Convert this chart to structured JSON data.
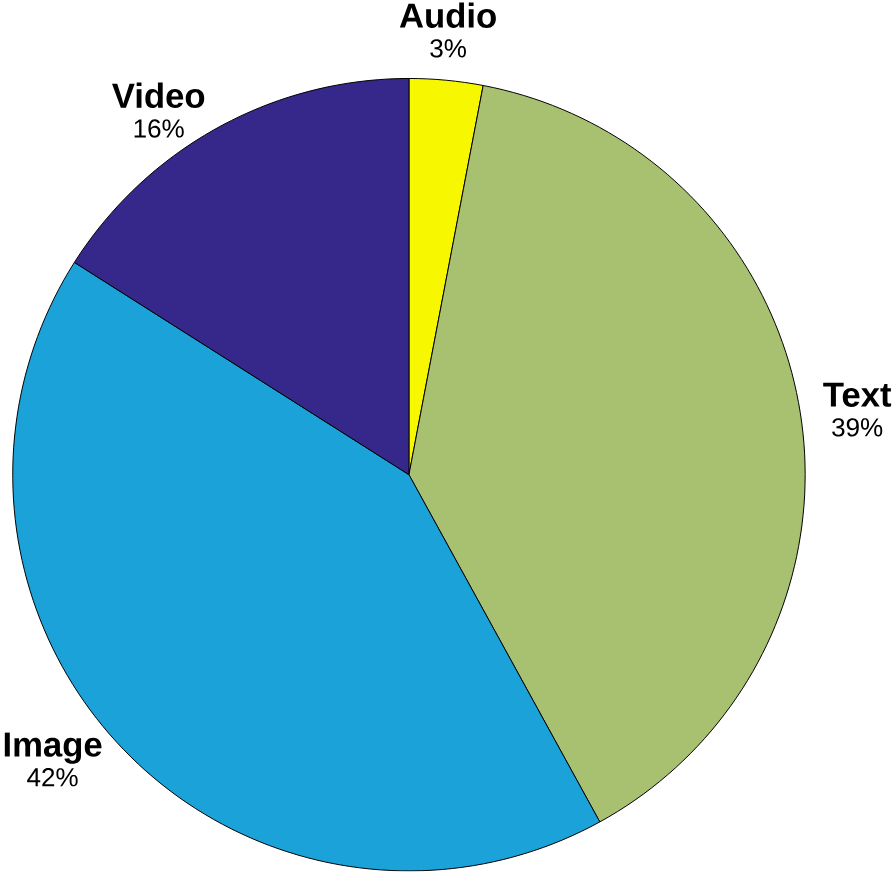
{
  "chart_data": {
    "type": "pie",
    "categories": [
      "Audio",
      "Text",
      "Image",
      "Video"
    ],
    "values": [
      3,
      39,
      42,
      16
    ],
    "value_labels": [
      "3%",
      "39%",
      "42%",
      "16%"
    ],
    "colors": [
      "#f7f700",
      "#a7c170",
      "#1ba3d9",
      "#35288a"
    ]
  }
}
